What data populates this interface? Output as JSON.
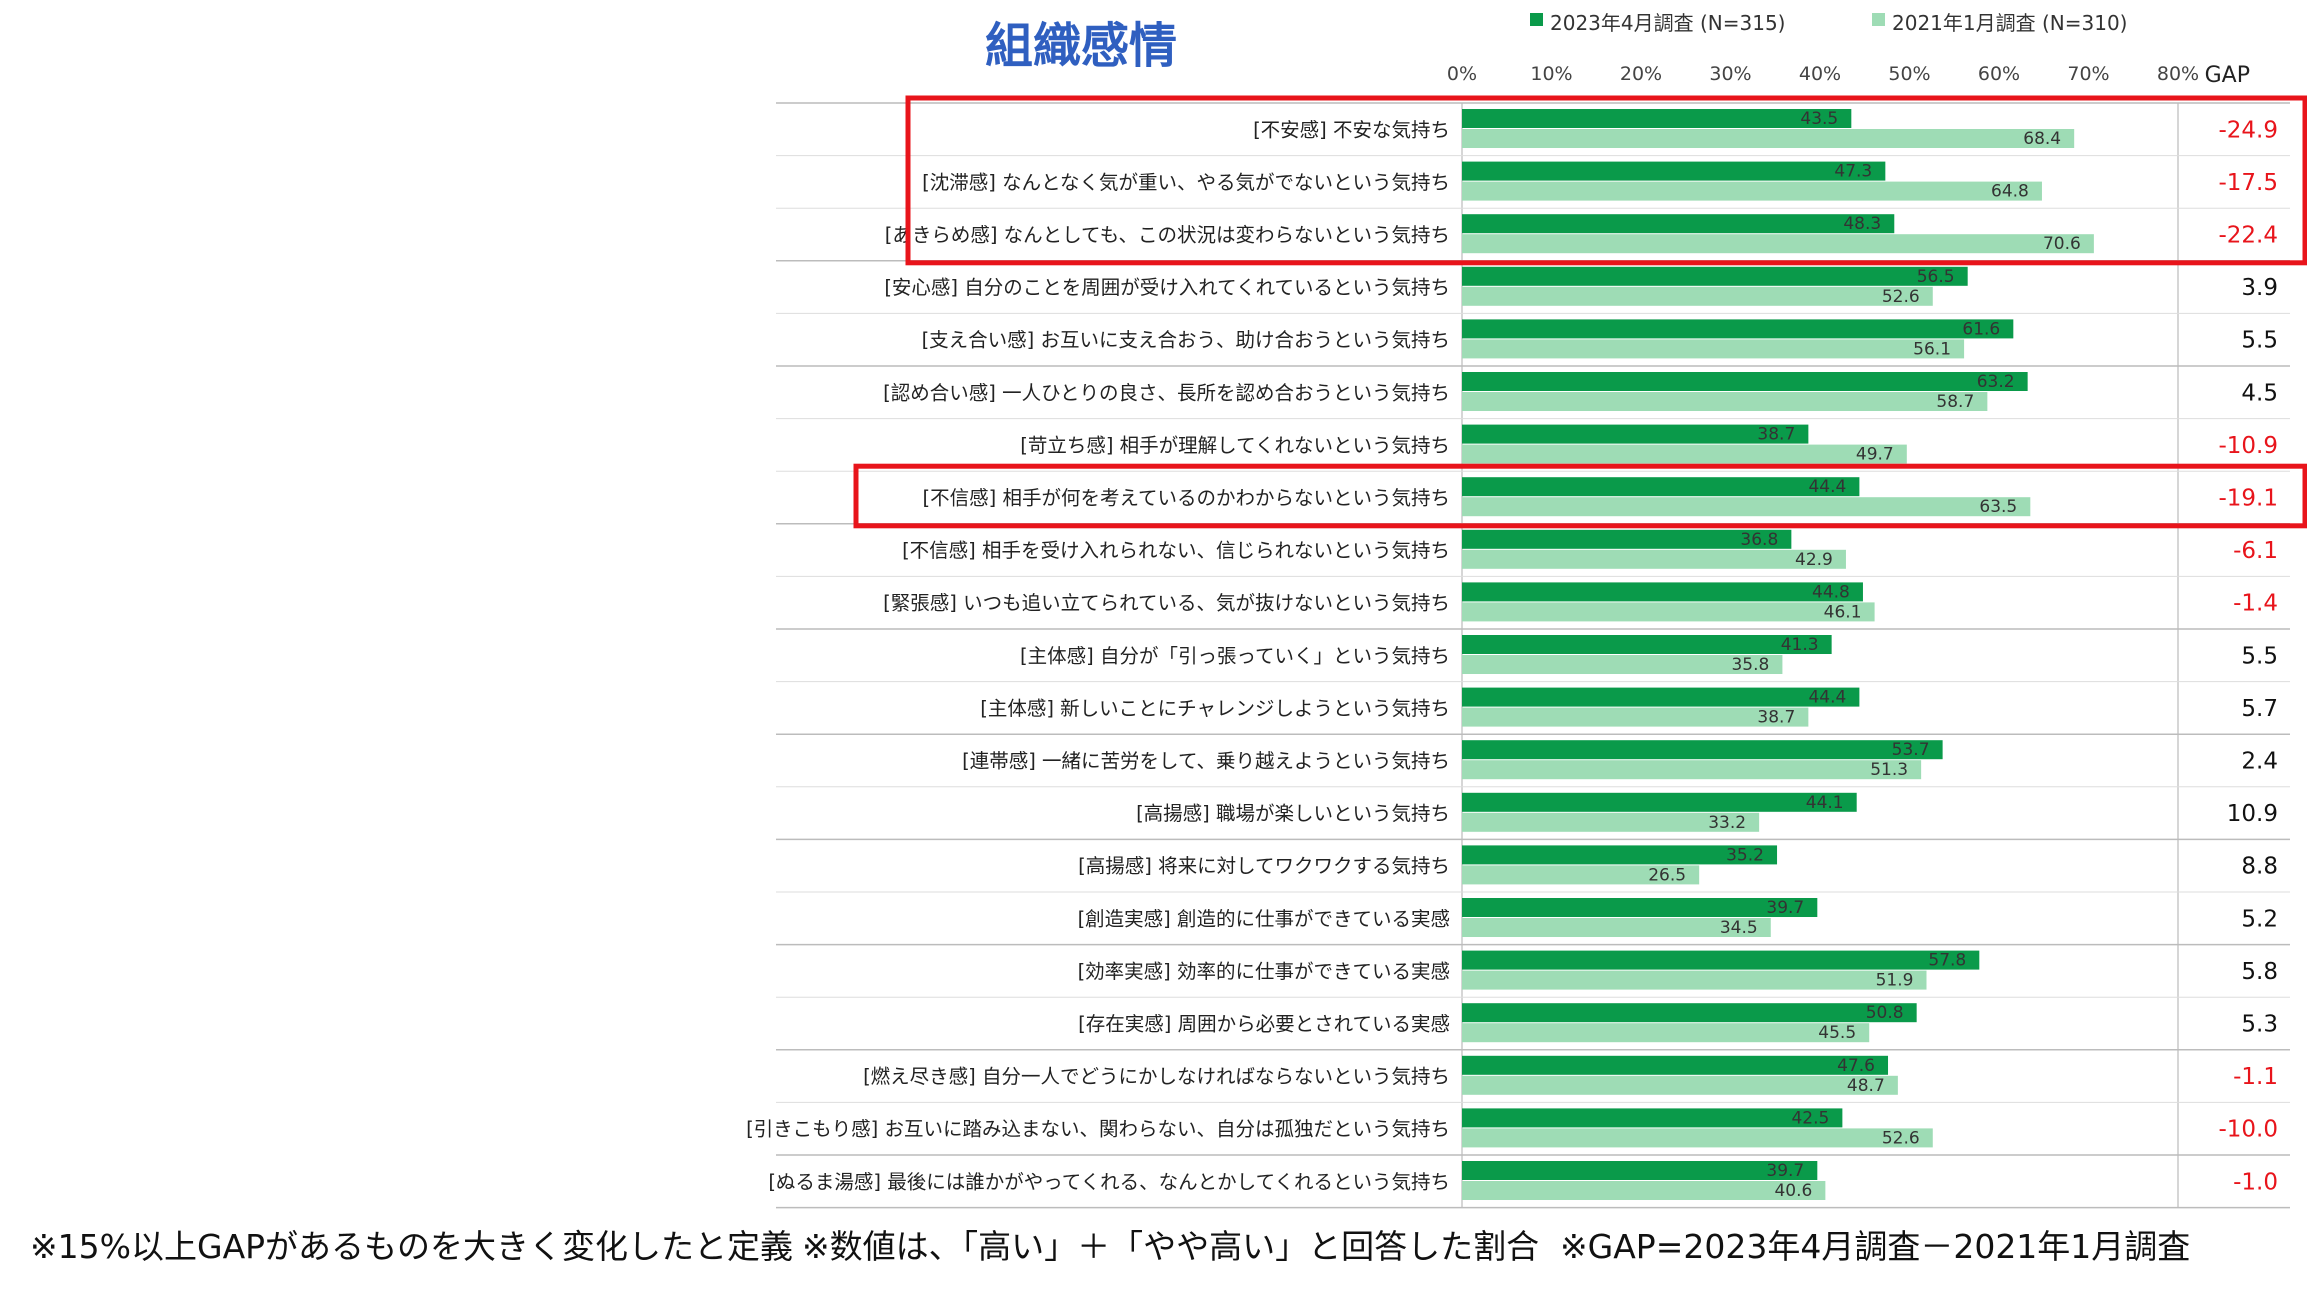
{
  "chart_data": {
    "type": "bar",
    "orientation": "horizontal",
    "title": "組織感情",
    "series": [
      {
        "name": "2023年4月調査 (N=315)",
        "color": "#0a9a4a",
        "values": [
          43.5,
          47.3,
          48.3,
          56.5,
          61.6,
          63.2,
          38.7,
          44.4,
          36.8,
          44.8,
          41.3,
          44.4,
          53.7,
          44.1,
          35.2,
          39.7,
          57.8,
          50.8,
          47.6,
          42.5,
          39.7
        ]
      },
      {
        "name": "2021年1月調査 (N=310)",
        "color": "#9edcb5",
        "values": [
          68.4,
          64.8,
          70.6,
          52.6,
          56.1,
          58.7,
          49.7,
          63.5,
          42.9,
          46.1,
          35.8,
          38.7,
          51.3,
          33.2,
          26.5,
          34.5,
          51.9,
          45.5,
          48.7,
          52.6,
          40.6
        ]
      }
    ],
    "categories": [
      "[不安感] 不安な気持ち",
      "[沈滞感] なんとなく気が重い、やる気がでないという気持ち",
      "[あきらめ感] なんとしても、この状況は変わらないという気持ち",
      "[安心感] 自分のことを周囲が受け入れてくれているという気持ち",
      "[支え合い感] お互いに支え合おう、助け合おうという気持ち",
      "[認め合い感] 一人ひとりの良さ、長所を認め合おうという気持ち",
      "[苛立ち感] 相手が理解してくれないという気持ち",
      "[不信感] 相手が何を考えているのかわからないという気持ち",
      "[不信感] 相手を受け入れられない、信じられないという気持ち",
      "[緊張感] いつも追い立てられている、気が抜けないという気持ち",
      "[主体感] 自分が「引っ張っていく」という気持ち",
      "[主体感] 新しいことにチャレンジしようという気持ち",
      "[連帯感] 一緒に苦労をして、乗り越えようという気持ち",
      "[高揚感] 職場が楽しいという気持ち",
      "[高揚感] 将来に対してワクワクする気持ち",
      "[創造実感] 創造的に仕事ができている実感",
      "[効率実感] 効率的に仕事ができている実感",
      "[存在実感] 周囲から必要とされている実感",
      "[燃え尽き感] 自分一人でどうにかしなければならないという気持ち",
      "[引きこもり感] お互いに踏み込まない、関わらない、自分は孤独だという気持ち",
      "[ぬるま湯感] 最後には誰かがやってくれる、なんとかしてくれるという気持ち"
    ],
    "gap_header": "GAP",
    "gap": [
      "-24.9",
      "-17.5",
      "-22.4",
      "3.9",
      "5.5",
      "4.5",
      "-10.9",
      "-19.1",
      "-6.1",
      "-1.4",
      "5.5",
      "5.7",
      "2.4",
      "10.9",
      "8.8",
      "5.2",
      "5.8",
      "5.3",
      "-1.1",
      "-10.0",
      "-1.0"
    ],
    "xlim": [
      0,
      80
    ],
    "xticks": [
      "0%",
      "10%",
      "20%",
      "30%",
      "40%",
      "50%",
      "60%",
      "70%",
      "80%"
    ],
    "highlighted_groups": [
      [
        0,
        2
      ],
      [
        7,
        7
      ]
    ],
    "highlight_color": "#e8141b",
    "negative_gap_color": "#e8141b",
    "positive_gap_color": "#111111"
  },
  "footnotes": {
    "definition": "※15%以上GAPがあるものを大きく変化したと定義",
    "values_note": "※数値は、「高い」＋「やや高い」と回答した割合",
    "gap_formula": "※GAP=2023年4月調査－2021年1月調査"
  }
}
